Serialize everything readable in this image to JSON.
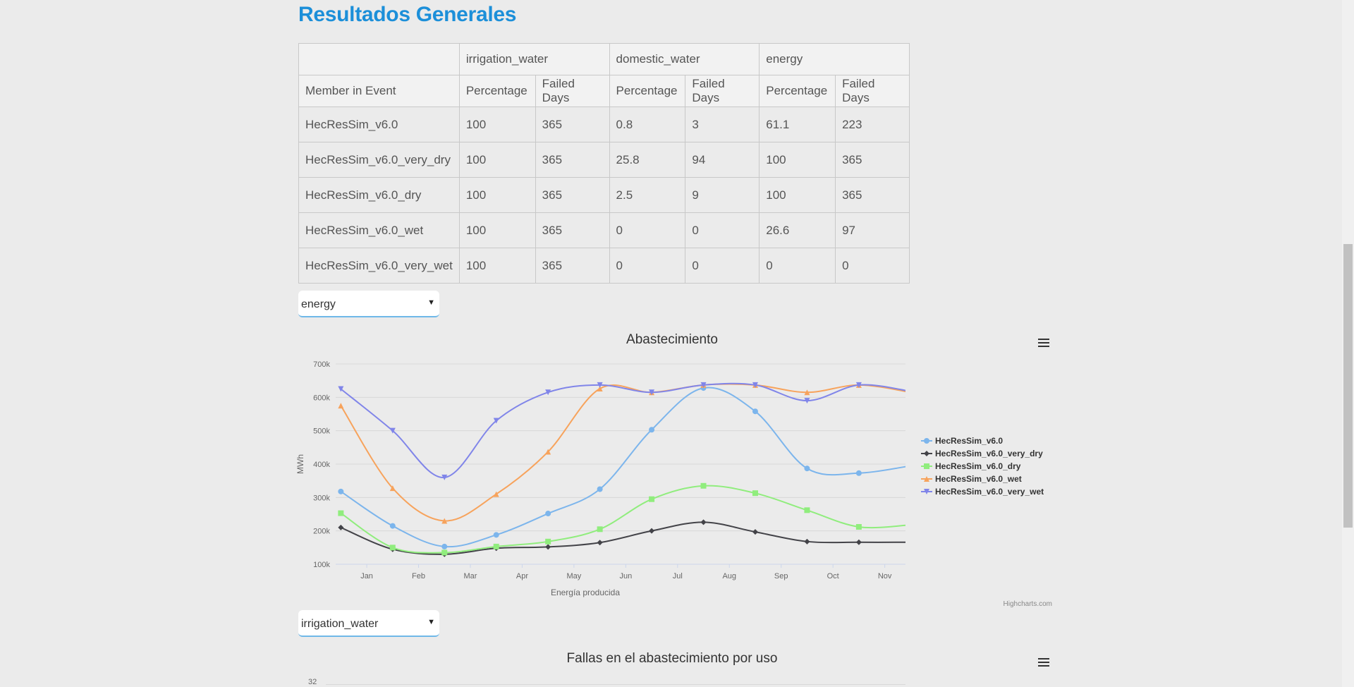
{
  "header": {
    "title": "Resultados Generales"
  },
  "table": {
    "groups": [
      "irrigation_water",
      "domestic_water",
      "energy"
    ],
    "first_column_header": "Member in Event",
    "sub_headers": [
      "Percentage",
      "Failed Days"
    ],
    "rows": [
      [
        "HecResSim_v6.0",
        "100",
        "365",
        "0.8",
        "3",
        "61.1",
        "223"
      ],
      [
        "HecResSim_v6.0_very_dry",
        "100",
        "365",
        "25.8",
        "94",
        "100",
        "365"
      ],
      [
        "HecResSim_v6.0_dry",
        "100",
        "365",
        "2.5",
        "9",
        "100",
        "365"
      ],
      [
        "HecResSim_v6.0_wet",
        "100",
        "365",
        "0",
        "0",
        "26.6",
        "97"
      ],
      [
        "HecResSim_v6.0_very_wet",
        "100",
        "365",
        "0",
        "0",
        "0",
        "0"
      ]
    ]
  },
  "select_1": {
    "value": "energy"
  },
  "select_2": {
    "value": "irrigation_water"
  },
  "chart_data": [
    {
      "type": "line",
      "title": "Abastecimiento",
      "xlabel": "Energía producida",
      "ylabel": "MWh",
      "x_ticks": [
        "Jan",
        "Feb",
        "Mar",
        "Apr",
        "May",
        "Jun",
        "Jul",
        "Aug",
        "Sep",
        "Oct",
        "Nov"
      ],
      "y_ticks": [
        "100k",
        "200k",
        "300k",
        "400k",
        "500k",
        "600k",
        "700k"
      ],
      "ylim": [
        100000,
        700000
      ],
      "x_domain": [
        0.4,
        11.4
      ],
      "x": [
        0.5,
        1.5,
        2.5,
        3.5,
        4.5,
        5.5,
        6.5,
        7.5,
        8.5,
        9.5,
        10.5,
        11.5
      ],
      "grid": true,
      "legend": "right",
      "series": [
        {
          "name": "HecResSim_v6.0",
          "color": "#7cb5ec",
          "marker": "circle",
          "values": [
            318000,
            215000,
            153000,
            188000,
            252000,
            325000,
            503000,
            628000,
            558000,
            387000,
            373000,
            395000
          ]
        },
        {
          "name": "HecResSim_v6.0_very_dry",
          "color": "#434348",
          "marker": "diamond",
          "values": [
            210000,
            145000,
            130000,
            148000,
            152000,
            165000,
            200000,
            226000,
            197000,
            168000,
            166000,
            166000
          ]
        },
        {
          "name": "HecResSim_v6.0_dry",
          "color": "#90ed7d",
          "marker": "square",
          "values": [
            253000,
            150000,
            135000,
            153000,
            168000,
            205000,
            295000,
            335000,
            313000,
            262000,
            212000,
            218000
          ]
        },
        {
          "name": "HecResSim_v6.0_wet",
          "color": "#f7a35c",
          "marker": "triangle",
          "values": [
            575000,
            328000,
            230000,
            310000,
            437000,
            626000,
            615000,
            637000,
            637000,
            615000,
            637000,
            615000
          ]
        },
        {
          "name": "HecResSim_v6.0_very_wet",
          "color": "#8085e9",
          "marker": "triangle-down",
          "values": [
            625000,
            500000,
            360000,
            530000,
            615000,
            637000,
            615000,
            637000,
            637000,
            590000,
            637000,
            618000
          ]
        }
      ],
      "credits": "Highcharts.com"
    },
    {
      "type": "line",
      "title": "Fallas en el abastecimiento por uso",
      "y_ticks": [
        "32"
      ]
    }
  ]
}
